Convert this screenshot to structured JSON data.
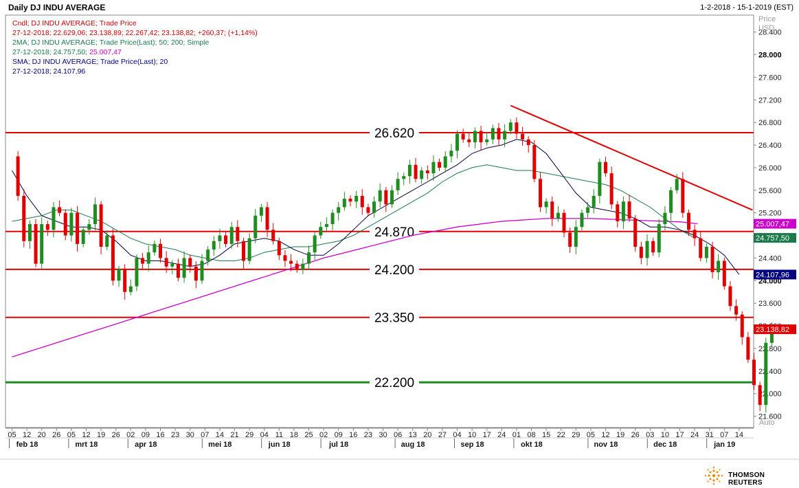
{
  "header": {
    "title": "Daily DJ INDU AVERAGE",
    "date_range": "1-2-2018 - 15-1-2019 (EST)"
  },
  "legend": [
    {
      "text": "Cndl; DJ INDU AVERAGE; Trade Price",
      "color": "#cc0000"
    },
    {
      "text": "27-12-2018; 22.629,06; 23.138,89; 22.267,42; 23.138,82; +260,37; (+1,14%)",
      "color": "#cc0000"
    },
    {
      "text": "2MA; DJ INDU AVERAGE; Trade Price(Last);  50; 200; Simple",
      "color": "#1a7a4a"
    },
    {
      "text": "27-12-2018; 24.757,50; ",
      "color": "#1a7a4a",
      "extra": "25.007,47",
      "extra_color": "#cc00cc"
    },
    {
      "text": "SMA; DJ INDU AVERAGE; Trade Price(Last);  20",
      "color": "#000080"
    },
    {
      "text": "27-12-2018; 24.107,96",
      "color": "#000080"
    }
  ],
  "axis_header": {
    "line1": "Price",
    "line2": "USD"
  },
  "auto_label": "Auto",
  "footer": {
    "brand": "THOMSON REUTERS"
  },
  "colors": {
    "up": "#1e8c1e",
    "down": "#e00000",
    "sma20": "#000040",
    "ma50": "#1a7a4a",
    "ma200": "#cc00cc",
    "resistance": "#e00000",
    "support": "#1e8c1e",
    "trendline": "#e00000"
  },
  "chart_data": {
    "type": "candlestick",
    "title": "Daily DJ INDU AVERAGE",
    "ylabel": "Price USD",
    "ylim": [
      21400,
      28700
    ],
    "y_ticks": [
      "21.600",
      "22.000",
      "22.400",
      "22.800",
      "23.200",
      "23.600",
      "24.000",
      "24.400",
      "24.800",
      "25.200",
      "25.600",
      "26.000",
      "26.400",
      "26.800",
      "27.200",
      "27.600",
      "28.000",
      "28.400"
    ],
    "x_day_ticks": [
      "05",
      "12",
      "20",
      "26",
      "05",
      "12",
      "19",
      "26",
      "02",
      "09",
      "16",
      "23",
      "30",
      "07",
      "14",
      "21",
      "29",
      "04",
      "11",
      "18",
      "25",
      "02",
      "09",
      "16",
      "23",
      "30",
      "06",
      "13",
      "20",
      "27",
      "04",
      "10",
      "17",
      "24",
      "01",
      "08",
      "15",
      "22",
      "29",
      "05",
      "12",
      "19",
      "26",
      "03",
      "10",
      "17",
      "24",
      "31",
      "07",
      "14"
    ],
    "x_months": [
      {
        "label": "feb 18",
        "after_tick": 0
      },
      {
        "label": "mrt 18",
        "after_tick": 4
      },
      {
        "label": "apr 18",
        "after_tick": 8
      },
      {
        "label": "mei 18",
        "after_tick": 13
      },
      {
        "label": "jun 18",
        "after_tick": 17
      },
      {
        "label": "jul 18",
        "after_tick": 21
      },
      {
        "label": "aug 18",
        "after_tick": 26
      },
      {
        "label": "sep 18",
        "after_tick": 30
      },
      {
        "label": "okt 18",
        "after_tick": 34
      },
      {
        "label": "nov 18",
        "after_tick": 39
      },
      {
        "label": "dec 18",
        "after_tick": 43
      },
      {
        "label": "jan 19",
        "after_tick": 47
      }
    ],
    "horizontal_levels": [
      {
        "value": 26620,
        "label": "26.620",
        "kind": "resistance"
      },
      {
        "value": 24870,
        "label": "24.870",
        "kind": "resistance"
      },
      {
        "value": 24200,
        "label": "24.200",
        "kind": "resistance"
      },
      {
        "value": 23350,
        "label": "23.350",
        "kind": "resistance"
      },
      {
        "value": 22200,
        "label": "22.200",
        "kind": "support"
      }
    ],
    "trendline": {
      "from": {
        "tick": 33.6,
        "value": 27100
      },
      "to": {
        "tick": 49.9,
        "value": 25250
      }
    },
    "price_tags": [
      {
        "label": "25.007,47",
        "value": 25007,
        "bg": "#cc00cc"
      },
      {
        "label": "24.757,50",
        "value": 24757,
        "bg": "#1a7a4a"
      },
      {
        "label": "24.107,96",
        "value": 24108,
        "bg": "#000080"
      },
      {
        "label": "23.138,82",
        "value": 23139,
        "bg": "#e00000"
      }
    ],
    "closes": [
      [
        0,
        26200
      ],
      [
        0.4,
        25500
      ],
      [
        0.8,
        24700
      ],
      [
        1.2,
        25000
      ],
      [
        1.6,
        24300
      ],
      [
        2.0,
        25000
      ],
      [
        2.4,
        24900
      ],
      [
        2.8,
        25300
      ],
      [
        3.2,
        25200
      ],
      [
        3.6,
        24800
      ],
      [
        4.0,
        25200
      ],
      [
        4.4,
        24650
      ],
      [
        4.8,
        24900
      ],
      [
        5.2,
        25000
      ],
      [
        5.6,
        25350
      ],
      [
        6.0,
        24600
      ],
      [
        6.4,
        24800
      ],
      [
        6.8,
        24000
      ],
      [
        7.2,
        24200
      ],
      [
        7.6,
        23800
      ],
      [
        8.0,
        23900
      ],
      [
        8.4,
        24400
      ],
      [
        8.8,
        24300
      ],
      [
        9.2,
        24500
      ],
      [
        9.6,
        24650
      ],
      [
        10.0,
        24400
      ],
      [
        10.4,
        24250
      ],
      [
        10.8,
        24300
      ],
      [
        11.2,
        24050
      ],
      [
        11.6,
        24400
      ],
      [
        12.0,
        24250
      ],
      [
        12.4,
        24000
      ],
      [
        12.8,
        24350
      ],
      [
        13.2,
        24550
      ],
      [
        13.6,
        24700
      ],
      [
        14.0,
        24800
      ],
      [
        14.4,
        24650
      ],
      [
        14.8,
        24950
      ],
      [
        15.2,
        24700
      ],
      [
        15.6,
        24350
      ],
      [
        16.0,
        24750
      ],
      [
        16.4,
        25150
      ],
      [
        16.8,
        25300
      ],
      [
        17.2,
        24900
      ],
      [
        17.6,
        24700
      ],
      [
        18.0,
        24450
      ],
      [
        18.4,
        24350
      ],
      [
        18.8,
        24300
      ],
      [
        19.2,
        24200
      ],
      [
        19.6,
        24300
      ],
      [
        20.0,
        24500
      ],
      [
        20.4,
        24800
      ],
      [
        20.8,
        24950
      ],
      [
        21.2,
        25000
      ],
      [
        21.6,
        25200
      ],
      [
        22.0,
        25300
      ],
      [
        22.4,
        25450
      ],
      [
        22.8,
        25400
      ],
      [
        23.2,
        25500
      ],
      [
        23.6,
        25300
      ],
      [
        24.0,
        25200
      ],
      [
        24.4,
        25400
      ],
      [
        24.8,
        25600
      ],
      [
        25.2,
        25350
      ],
      [
        25.6,
        25600
      ],
      [
        26.0,
        25800
      ],
      [
        26.4,
        25850
      ],
      [
        26.8,
        26050
      ],
      [
        27.2,
        25800
      ],
      [
        27.6,
        25950
      ],
      [
        28.0,
        25900
      ],
      [
        28.4,
        26100
      ],
      [
        28.8,
        26000
      ],
      [
        29.2,
        26200
      ],
      [
        29.6,
        26300
      ],
      [
        30.0,
        26600
      ],
      [
        30.4,
        26500
      ],
      [
        30.8,
        26450
      ],
      [
        31.2,
        26650
      ],
      [
        31.6,
        26450
      ],
      [
        32.0,
        26500
      ],
      [
        32.4,
        26700
      ],
      [
        32.8,
        26500
      ],
      [
        33.2,
        26650
      ],
      [
        33.6,
        26800
      ],
      [
        34.0,
        26600
      ],
      [
        34.4,
        26500
      ],
      [
        34.8,
        26400
      ],
      [
        35.2,
        25800
      ],
      [
        35.6,
        25300
      ],
      [
        36.0,
        25400
      ],
      [
        36.4,
        25100
      ],
      [
        36.8,
        25200
      ],
      [
        37.2,
        24850
      ],
      [
        37.6,
        24600
      ],
      [
        38.0,
        24950
      ],
      [
        38.4,
        25200
      ],
      [
        38.8,
        25300
      ],
      [
        39.2,
        25500
      ],
      [
        39.6,
        26100
      ],
      [
        40.0,
        25900
      ],
      [
        40.4,
        25350
      ],
      [
        40.8,
        25050
      ],
      [
        41.2,
        25400
      ],
      [
        41.6,
        25100
      ],
      [
        42.0,
        24600
      ],
      [
        42.4,
        24400
      ],
      [
        42.8,
        24700
      ],
      [
        43.2,
        24500
      ],
      [
        43.6,
        25000
      ],
      [
        44.0,
        25200
      ],
      [
        44.4,
        25600
      ],
      [
        44.8,
        25800
      ],
      [
        45.2,
        25200
      ],
      [
        45.6,
        24900
      ],
      [
        46.0,
        24750
      ],
      [
        46.4,
        24400
      ],
      [
        46.8,
        24600
      ],
      [
        47.2,
        24150
      ],
      [
        47.6,
        24350
      ],
      [
        48.0,
        23900
      ],
      [
        48.4,
        23550
      ],
      [
        48.8,
        23400
      ],
      [
        49.2,
        23000
      ],
      [
        49.6,
        22600
      ],
      [
        50.0,
        22150
      ],
      [
        50.4,
        21800
      ],
      [
        50.8,
        22900
      ],
      [
        51.2,
        23140
      ]
    ],
    "sma20": [
      [
        0,
        25950
      ],
      [
        1,
        25500
      ],
      [
        2,
        25150
      ],
      [
        3,
        25050
      ],
      [
        4,
        24950
      ],
      [
        5,
        24950
      ],
      [
        6,
        24900
      ],
      [
        7,
        24700
      ],
      [
        8,
        24450
      ],
      [
        9,
        24350
      ],
      [
        10,
        24350
      ],
      [
        11,
        24300
      ],
      [
        12,
        24250
      ],
      [
        13,
        24300
      ],
      [
        14,
        24450
      ],
      [
        15,
        24650
      ],
      [
        16,
        24700
      ],
      [
        17,
        24750
      ],
      [
        18,
        24700
      ],
      [
        19,
        24550
      ],
      [
        20,
        24450
      ],
      [
        21,
        24450
      ],
      [
        22,
        24650
      ],
      [
        23,
        24900
      ],
      [
        24,
        25150
      ],
      [
        25,
        25300
      ],
      [
        26,
        25450
      ],
      [
        27,
        25600
      ],
      [
        28,
        25750
      ],
      [
        29,
        25900
      ],
      [
        30,
        26050
      ],
      [
        31,
        26250
      ],
      [
        32,
        26350
      ],
      [
        33,
        26400
      ],
      [
        34,
        26500
      ],
      [
        35,
        26450
      ],
      [
        36,
        26250
      ],
      [
        37,
        25900
      ],
      [
        38,
        25550
      ],
      [
        39,
        25300
      ],
      [
        40,
        25250
      ],
      [
        41,
        25200
      ],
      [
        42,
        25100
      ],
      [
        43,
        24950
      ],
      [
        44,
        24950
      ],
      [
        45,
        24900
      ],
      [
        46,
        24800
      ],
      [
        47,
        24650
      ],
      [
        48,
        24450
      ],
      [
        49,
        24108
      ]
    ],
    "ma50": [
      [
        0,
        25050
      ],
      [
        1,
        25100
      ],
      [
        2,
        25150
      ],
      [
        3,
        25250
      ],
      [
        4,
        25250
      ],
      [
        5,
        25150
      ],
      [
        6,
        25050
      ],
      [
        7,
        24900
      ],
      [
        8,
        24750
      ],
      [
        9,
        24650
      ],
      [
        10,
        24600
      ],
      [
        11,
        24550
      ],
      [
        12,
        24450
      ],
      [
        13,
        24400
      ],
      [
        14,
        24350
      ],
      [
        15,
        24350
      ],
      [
        16,
        24400
      ],
      [
        17,
        24500
      ],
      [
        18,
        24550
      ],
      [
        19,
        24600
      ],
      [
        20,
        24600
      ],
      [
        21,
        24650
      ],
      [
        22,
        24700
      ],
      [
        23,
        24800
      ],
      [
        24,
        24950
      ],
      [
        25,
        25100
      ],
      [
        26,
        25250
      ],
      [
        27,
        25400
      ],
      [
        28,
        25550
      ],
      [
        29,
        25750
      ],
      [
        30,
        25900
      ],
      [
        31,
        26000
      ],
      [
        32,
        26050
      ],
      [
        33,
        26000
      ],
      [
        34,
        25950
      ],
      [
        35,
        25950
      ],
      [
        36,
        25900
      ],
      [
        37,
        25850
      ],
      [
        38,
        25800
      ],
      [
        39,
        25750
      ],
      [
        40,
        25700
      ],
      [
        41,
        25600
      ],
      [
        42,
        25450
      ],
      [
        43,
        25300
      ],
      [
        44,
        25100
      ],
      [
        45,
        24900
      ],
      [
        46,
        24757
      ]
    ],
    "ma200": [
      [
        0,
        22650
      ],
      [
        3,
        22900
      ],
      [
        6,
        23150
      ],
      [
        9,
        23400
      ],
      [
        12,
        23650
      ],
      [
        15,
        23900
      ],
      [
        18,
        24150
      ],
      [
        21,
        24400
      ],
      [
        24,
        24600
      ],
      [
        27,
        24800
      ],
      [
        30,
        24950
      ],
      [
        33,
        25050
      ],
      [
        36,
        25100
      ],
      [
        39,
        25100
      ],
      [
        42,
        25070
      ],
      [
        45,
        25040
      ],
      [
        46.2,
        25007
      ]
    ]
  }
}
